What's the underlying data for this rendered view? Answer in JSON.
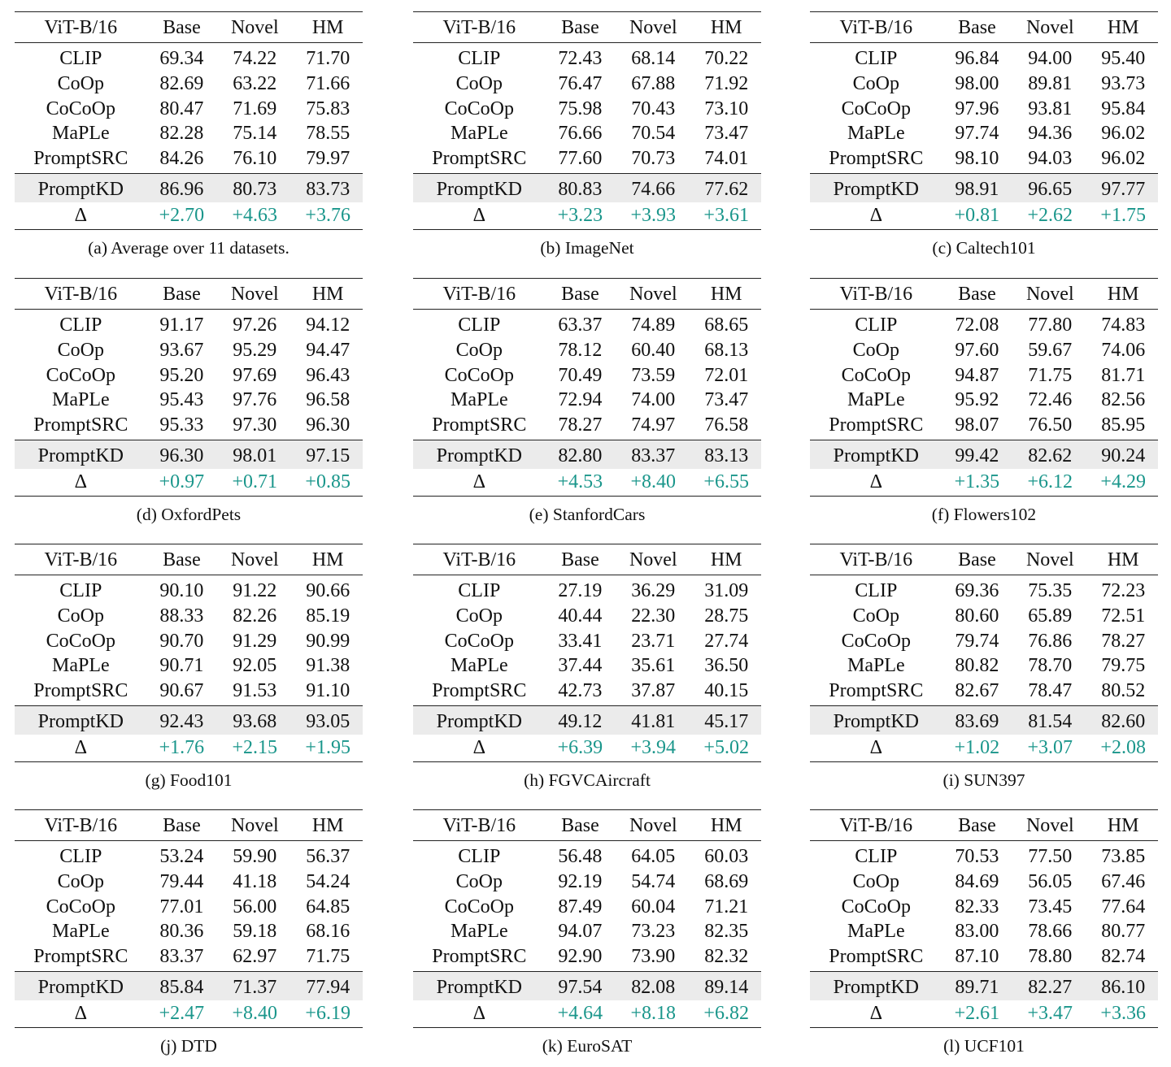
{
  "header": [
    "ViT-B/16",
    "Base",
    "Novel",
    "HM"
  ],
  "method_names": [
    "CLIP",
    "CoOp",
    "CoCoOp",
    "MaPLe",
    "PromptSRC"
  ],
  "ours_label": "PromptKD",
  "delta_label": "Δ",
  "gain_color": "#1a968b",
  "panels": [
    {
      "caption": "(a) Average over 11 datasets.",
      "rows": [
        [
          "69.34",
          "74.22",
          "71.70"
        ],
        [
          "82.69",
          "63.22",
          "71.66"
        ],
        [
          "80.47",
          "71.69",
          "75.83"
        ],
        [
          "82.28",
          "75.14",
          "78.55"
        ],
        [
          "84.26",
          "76.10",
          "79.97"
        ]
      ],
      "ours": [
        "86.96",
        "80.73",
        "83.73"
      ],
      "delta": [
        "+2.70",
        "+4.63",
        "+3.76"
      ]
    },
    {
      "caption": "(b) ImageNet",
      "rows": [
        [
          "72.43",
          "68.14",
          "70.22"
        ],
        [
          "76.47",
          "67.88",
          "71.92"
        ],
        [
          "75.98",
          "70.43",
          "73.10"
        ],
        [
          "76.66",
          "70.54",
          "73.47"
        ],
        [
          "77.60",
          "70.73",
          "74.01"
        ]
      ],
      "ours": [
        "80.83",
        "74.66",
        "77.62"
      ],
      "delta": [
        "+3.23",
        "+3.93",
        "+3.61"
      ]
    },
    {
      "caption": "(c) Caltech101",
      "rows": [
        [
          "96.84",
          "94.00",
          "95.40"
        ],
        [
          "98.00",
          "89.81",
          "93.73"
        ],
        [
          "97.96",
          "93.81",
          "95.84"
        ],
        [
          "97.74",
          "94.36",
          "96.02"
        ],
        [
          "98.10",
          "94.03",
          "96.02"
        ]
      ],
      "ours": [
        "98.91",
        "96.65",
        "97.77"
      ],
      "delta": [
        "+0.81",
        "+2.62",
        "+1.75"
      ]
    },
    {
      "caption": "(d) OxfordPets",
      "rows": [
        [
          "91.17",
          "97.26",
          "94.12"
        ],
        [
          "93.67",
          "95.29",
          "94.47"
        ],
        [
          "95.20",
          "97.69",
          "96.43"
        ],
        [
          "95.43",
          "97.76",
          "96.58"
        ],
        [
          "95.33",
          "97.30",
          "96.30"
        ]
      ],
      "ours": [
        "96.30",
        "98.01",
        "97.15"
      ],
      "delta": [
        "+0.97",
        "+0.71",
        "+0.85"
      ]
    },
    {
      "caption": "(e) StanfordCars",
      "rows": [
        [
          "63.37",
          "74.89",
          "68.65"
        ],
        [
          "78.12",
          "60.40",
          "68.13"
        ],
        [
          "70.49",
          "73.59",
          "72.01"
        ],
        [
          "72.94",
          "74.00",
          "73.47"
        ],
        [
          "78.27",
          "74.97",
          "76.58"
        ]
      ],
      "ours": [
        "82.80",
        "83.37",
        "83.13"
      ],
      "delta": [
        "+4.53",
        "+8.40",
        "+6.55"
      ]
    },
    {
      "caption": "(f) Flowers102",
      "rows": [
        [
          "72.08",
          "77.80",
          "74.83"
        ],
        [
          "97.60",
          "59.67",
          "74.06"
        ],
        [
          "94.87",
          "71.75",
          "81.71"
        ],
        [
          "95.92",
          "72.46",
          "82.56"
        ],
        [
          "98.07",
          "76.50",
          "85.95"
        ]
      ],
      "ours": [
        "99.42",
        "82.62",
        "90.24"
      ],
      "delta": [
        "+1.35",
        "+6.12",
        "+4.29"
      ]
    },
    {
      "caption": "(g) Food101",
      "rows": [
        [
          "90.10",
          "91.22",
          "90.66"
        ],
        [
          "88.33",
          "82.26",
          "85.19"
        ],
        [
          "90.70",
          "91.29",
          "90.99"
        ],
        [
          "90.71",
          "92.05",
          "91.38"
        ],
        [
          "90.67",
          "91.53",
          "91.10"
        ]
      ],
      "ours": [
        "92.43",
        "93.68",
        "93.05"
      ],
      "delta": [
        "+1.76",
        "+2.15",
        "+1.95"
      ]
    },
    {
      "caption": "(h) FGVCAircraft",
      "rows": [
        [
          "27.19",
          "36.29",
          "31.09"
        ],
        [
          "40.44",
          "22.30",
          "28.75"
        ],
        [
          "33.41",
          "23.71",
          "27.74"
        ],
        [
          "37.44",
          "35.61",
          "36.50"
        ],
        [
          "42.73",
          "37.87",
          "40.15"
        ]
      ],
      "ours": [
        "49.12",
        "41.81",
        "45.17"
      ],
      "delta": [
        "+6.39",
        "+3.94",
        "+5.02"
      ]
    },
    {
      "caption": "(i) SUN397",
      "rows": [
        [
          "69.36",
          "75.35",
          "72.23"
        ],
        [
          "80.60",
          "65.89",
          "72.51"
        ],
        [
          "79.74",
          "76.86",
          "78.27"
        ],
        [
          "80.82",
          "78.70",
          "79.75"
        ],
        [
          "82.67",
          "78.47",
          "80.52"
        ]
      ],
      "ours": [
        "83.69",
        "81.54",
        "82.60"
      ],
      "delta": [
        "+1.02",
        "+3.07",
        "+2.08"
      ]
    },
    {
      "caption": "(j) DTD",
      "rows": [
        [
          "53.24",
          "59.90",
          "56.37"
        ],
        [
          "79.44",
          "41.18",
          "54.24"
        ],
        [
          "77.01",
          "56.00",
          "64.85"
        ],
        [
          "80.36",
          "59.18",
          "68.16"
        ],
        [
          "83.37",
          "62.97",
          "71.75"
        ]
      ],
      "ours": [
        "85.84",
        "71.37",
        "77.94"
      ],
      "delta": [
        "+2.47",
        "+8.40",
        "+6.19"
      ]
    },
    {
      "caption": "(k) EuroSAT",
      "rows": [
        [
          "56.48",
          "64.05",
          "60.03"
        ],
        [
          "92.19",
          "54.74",
          "68.69"
        ],
        [
          "87.49",
          "60.04",
          "71.21"
        ],
        [
          "94.07",
          "73.23",
          "82.35"
        ],
        [
          "92.90",
          "73.90",
          "82.32"
        ]
      ],
      "ours": [
        "97.54",
        "82.08",
        "89.14"
      ],
      "delta": [
        "+4.64",
        "+8.18",
        "+6.82"
      ]
    },
    {
      "caption": "(l) UCF101",
      "rows": [
        [
          "70.53",
          "77.50",
          "73.85"
        ],
        [
          "84.69",
          "56.05",
          "67.46"
        ],
        [
          "82.33",
          "73.45",
          "77.64"
        ],
        [
          "83.00",
          "78.66",
          "80.77"
        ],
        [
          "87.10",
          "78.80",
          "82.74"
        ]
      ],
      "ours": [
        "89.71",
        "82.27",
        "86.10"
      ],
      "delta": [
        "+2.61",
        "+3.47",
        "+3.36"
      ]
    }
  ]
}
